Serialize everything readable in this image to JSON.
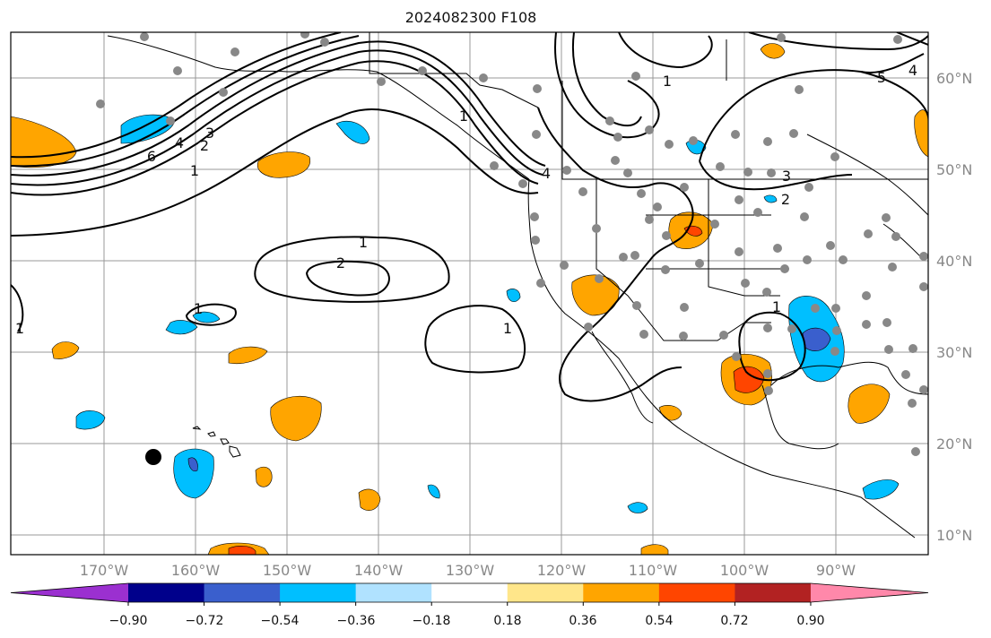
{
  "title": "2024082300 F108",
  "lat_labels": [
    "60°N",
    "50°N",
    "40°N",
    "30°N",
    "20°N",
    "10°N"
  ],
  "lon_labels": [
    "170°W",
    "160°W",
    "150°W",
    "140°W",
    "130°W",
    "120°W",
    "110°W",
    "100°W",
    "90°W"
  ],
  "colorbar": {
    "ticks": [
      "−0.90",
      "−0.72",
      "−0.54",
      "−0.36",
      "−0.18",
      "0.18",
      "0.36",
      "0.54",
      "0.72",
      "0.90"
    ],
    "colors": [
      "#9b30d0",
      "#00008b",
      "#3a5fcd",
      "#00bfff",
      "#b0e2ff",
      "#ffffff",
      "#ffe68a",
      "#ffa500",
      "#ff4500",
      "#b22222",
      "#ff88aa"
    ]
  },
  "contour_labels": [
    "6",
    "4",
    "2",
    "3",
    "1",
    "1",
    "2",
    "1",
    "1",
    "1",
    "1",
    "4",
    "1",
    "5",
    "4",
    "3",
    "2",
    "1"
  ],
  "station_marker_color": "#888888",
  "highlight_marker_color": "#000000"
}
